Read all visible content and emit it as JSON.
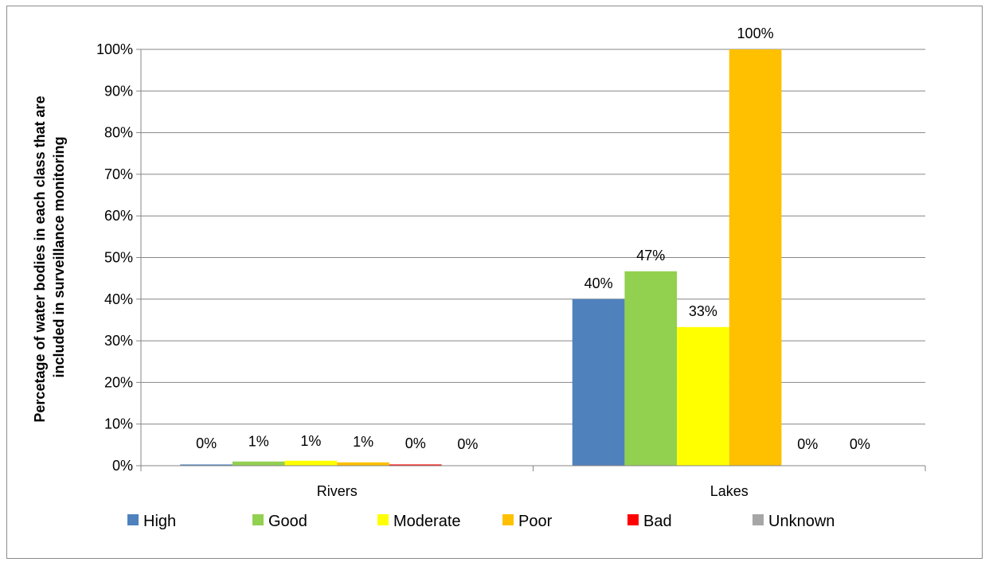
{
  "chart_data": {
    "type": "bar",
    "categories": [
      "Rivers",
      "Lakes"
    ],
    "series": [
      {
        "name": "High",
        "color": "#4f81bd",
        "values": [
          0.3,
          40
        ],
        "labels": [
          "0%",
          "40%"
        ]
      },
      {
        "name": "Good",
        "color": "#92d050",
        "values": [
          1.0,
          46.7
        ],
        "labels": [
          "1%",
          "47%"
        ]
      },
      {
        "name": "Moderate",
        "color": "#ffff00",
        "values": [
          1.2,
          33.3
        ],
        "labels": [
          "1%",
          "33%"
        ]
      },
      {
        "name": "Poor",
        "color": "#ffc000",
        "values": [
          0.8,
          100
        ],
        "labels": [
          "1%",
          "100%"
        ]
      },
      {
        "name": "Bad",
        "color": "#ff0000",
        "values": [
          0.3,
          0
        ],
        "labels": [
          "0%",
          "0%"
        ]
      },
      {
        "name": "Unknown",
        "color": "#a6a6a6",
        "values": [
          0,
          0
        ],
        "labels": [
          "0%",
          "0%"
        ]
      }
    ],
    "ylabel_lines": [
      "Percetage of water bodies in each class that are",
      "included in surveillance monitoring"
    ],
    "ylim": [
      0,
      100
    ],
    "yticks": [
      "0%",
      "10%",
      "20%",
      "30%",
      "40%",
      "50%",
      "60%",
      "70%",
      "80%",
      "90%",
      "100%"
    ],
    "grid": true,
    "legend_position": "bottom"
  }
}
